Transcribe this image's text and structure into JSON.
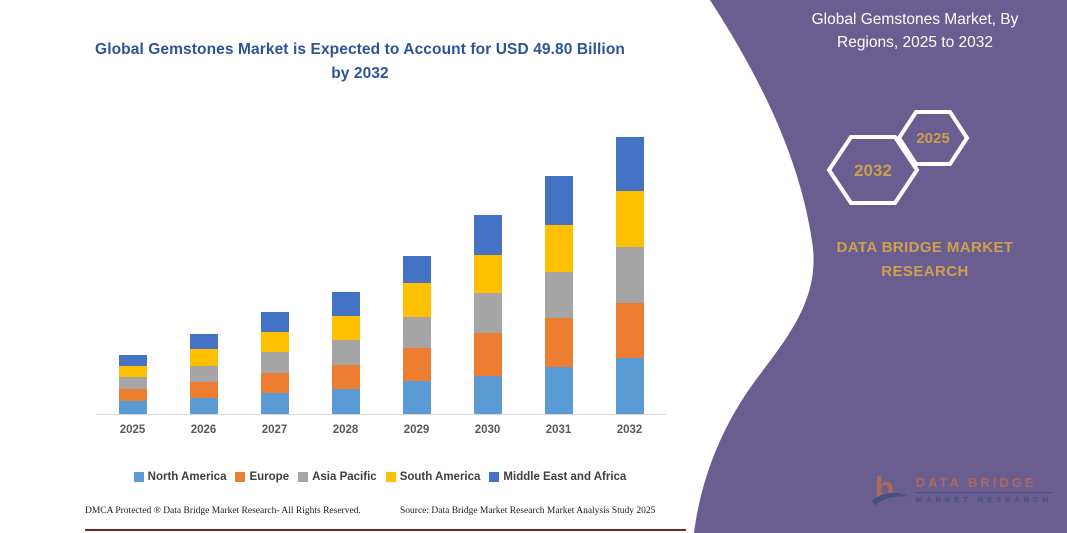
{
  "chart": {
    "title": "Global Gemstones Market is Expected to Account for USD 49.80 Billion by 2032",
    "footer_left": "DMCA Protected ® Data Bridge Market Research-  All Rights Reserved.",
    "footer_source": "Source: Data Bridge Market Research  Market Analysis Study 2025"
  },
  "chart_data": {
    "type": "bar",
    "stacked": true,
    "title": "Global Gemstones Market is Expected to Account for USD 49.80 Billion by 2032",
    "categories": [
      "2025",
      "2026",
      "2027",
      "2028",
      "2029",
      "2030",
      "2031",
      "2032"
    ],
    "series": [
      {
        "name": "North America",
        "color": "#5b9bd5",
        "values": [
          2.4,
          2.9,
          3.7,
          4.5,
          6.0,
          6.9,
          8.4,
          10.0
        ]
      },
      {
        "name": "Europe",
        "color": "#ed7d31",
        "values": [
          2.1,
          2.9,
          3.7,
          4.4,
          5.8,
          7.6,
          8.8,
          10.0
        ]
      },
      {
        "name": "Asia Pacific",
        "color": "#a5a5a5",
        "values": [
          2.1,
          2.9,
          3.7,
          4.4,
          5.7,
          7.2,
          8.4,
          10.0
        ]
      },
      {
        "name": "South America",
        "color": "#ffc000",
        "values": [
          2.1,
          2.9,
          3.6,
          4.4,
          6.0,
          6.9,
          8.4,
          10.1
        ]
      },
      {
        "name": "Middle East and Africa",
        "color": "#4472c4",
        "values": [
          2.0,
          2.8,
          3.6,
          4.2,
          4.9,
          7.2,
          8.8,
          9.7
        ]
      }
    ],
    "totals_note": "2032 total equals 49.80 USD Billion per title",
    "xlabel": "",
    "ylabel": "",
    "y_axis_visible": false,
    "grid": false,
    "legend_position": "bottom"
  },
  "panel": {
    "title": "Global Gemstones Market, By Regions, 2025 to 2032",
    "hex_large": "2032",
    "hex_small": "2025",
    "brand": "DATA BRIDGE MARKET RESEARCH",
    "colors": {
      "background": "#6a5d8f",
      "gold": "#cfa14f",
      "hex_stroke": "#ffffff"
    }
  },
  "logo": {
    "glyph": "b",
    "line1": "DATA BRIDGE",
    "line2": "MARKET RESEARCH"
  }
}
